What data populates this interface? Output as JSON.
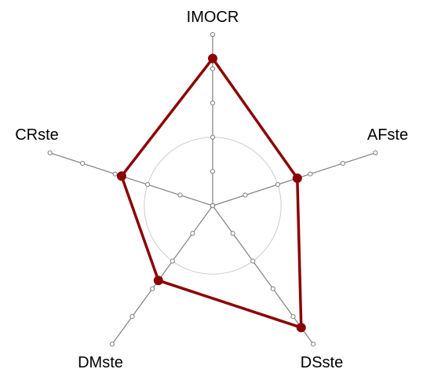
{
  "chart_data": {
    "type": "radar",
    "title": "",
    "axes": [
      "IMOCR",
      "AFste",
      "DSste",
      "DMste",
      "CRste"
    ],
    "scale": {
      "max": 5,
      "ticks": [
        1,
        2,
        3,
        4,
        5
      ]
    },
    "reference_circle": 2,
    "series": [
      {
        "values": [
          4.3,
          2.6,
          4.4,
          2.7,
          2.8
        ]
      }
    ],
    "colors": {
      "series": "#8b0000",
      "axis": "#808080",
      "reference_circle": "#cccccc",
      "tick_marker": "#808080"
    },
    "grid": false,
    "legend": "none"
  }
}
